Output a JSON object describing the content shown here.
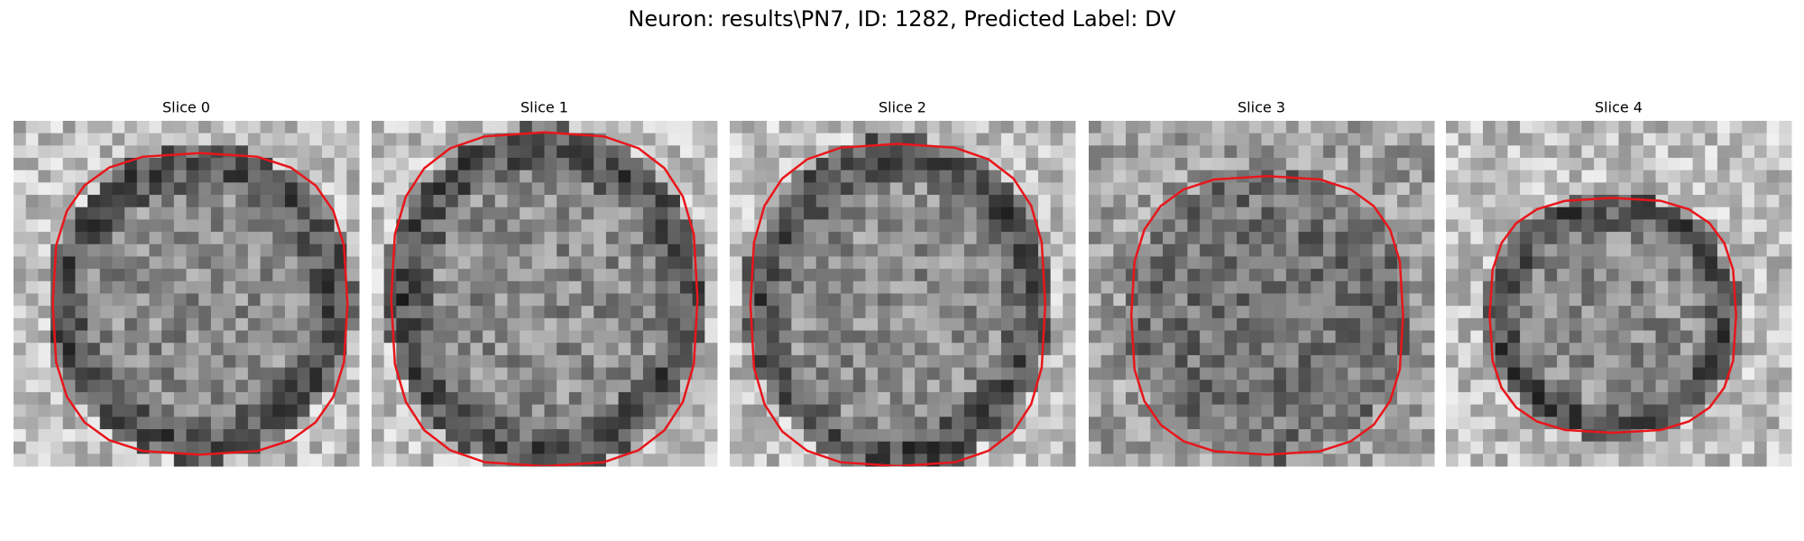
{
  "title": "Neuron: results\\PN7, ID: 1282, Predicted Label: DV",
  "panels": [
    {
      "title": "Slice 0"
    },
    {
      "title": "Slice 1"
    },
    {
      "title": "Slice 2"
    },
    {
      "title": "Slice 3"
    },
    {
      "title": "Slice 4"
    }
  ]
}
